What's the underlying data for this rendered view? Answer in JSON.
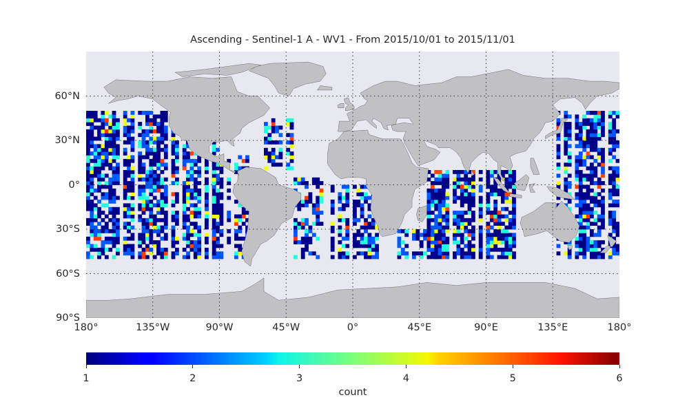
{
  "title": "Ascending - Sentinel-1 A - WV1 - From 2015/10/01 to 2015/11/01",
  "lat_labels": [
    "60°N",
    "30°N",
    "0°",
    "30°S",
    "60°S",
    "90°S"
  ],
  "lat_values": [
    60,
    30,
    0,
    -30,
    -60,
    -90
  ],
  "lon_labels": [
    "180°",
    "135°W",
    "90°W",
    "45°W",
    "0°",
    "45°E",
    "90°E",
    "135°E",
    "180°"
  ],
  "lon_values": [
    -180,
    -135,
    -90,
    -45,
    0,
    45,
    90,
    135,
    180
  ],
  "colorbar": {
    "label": "count",
    "ticks": [
      "1",
      "2",
      "3",
      "4",
      "5",
      "6"
    ],
    "min": 1,
    "max": 6,
    "colormap": "jet"
  },
  "colors": {
    "ocean_background": "#e8e8f0",
    "land": "#c1c1c5",
    "grid": "#333333"
  },
  "chart_data": {
    "type": "heatmap",
    "projection": "plate carree",
    "xlim": [
      -180,
      180
    ],
    "ylim": [
      -90,
      90
    ],
    "value_label": "count",
    "value_range": [
      1,
      6
    ],
    "swath_regions": [
      {
        "lon": [
          -180,
          -90
        ],
        "lat": [
          -50,
          50
        ],
        "density": 0.75
      },
      {
        "lon": [
          -100,
          -70
        ],
        "lat": [
          -50,
          20
        ],
        "density": 0.6
      },
      {
        "lon": [
          -60,
          -38
        ],
        "lat": [
          10,
          45
        ],
        "density": 0.55
      },
      {
        "lon": [
          -40,
          -20
        ],
        "lat": [
          -50,
          5
        ],
        "density": 0.5
      },
      {
        "lon": [
          -15,
          18
        ],
        "lat": [
          -50,
          0
        ],
        "density": 0.6
      },
      {
        "lon": [
          30,
          60
        ],
        "lat": [
          -50,
          -30
        ],
        "density": 0.5
      },
      {
        "lon": [
          50,
          110
        ],
        "lat": [
          -50,
          10
        ],
        "density": 0.8
      },
      {
        "lon": [
          135,
          180
        ],
        "lat": [
          -50,
          50
        ],
        "density": 0.7
      }
    ]
  }
}
